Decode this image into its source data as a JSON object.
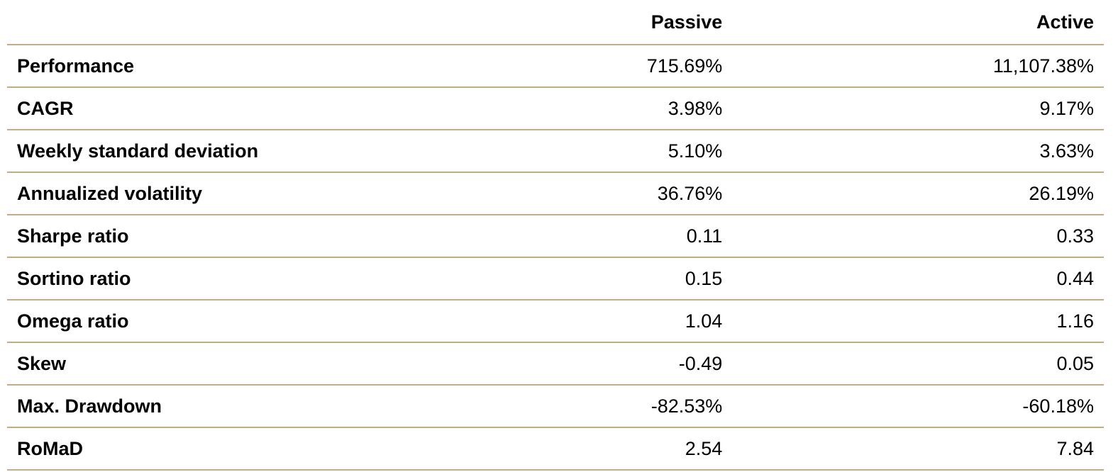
{
  "table": {
    "columns": [
      "Passive",
      "Active"
    ],
    "rows": [
      [
        "Performance",
        "715.69%",
        "11,107.38%"
      ],
      [
        "CAGR",
        "3.98%",
        "9.17%"
      ],
      [
        "Weekly standard deviation",
        "5.10%",
        "3.63%"
      ],
      [
        "Annualized volatility",
        "36.76%",
        "26.19%"
      ],
      [
        "Sharpe ratio",
        "0.11",
        "0.33"
      ],
      [
        "Sortino ratio",
        "0.15",
        "0.44"
      ],
      [
        "Omega ratio",
        "1.04",
        "1.16"
      ],
      [
        "Skew",
        "-0.49",
        "0.05"
      ],
      [
        "Max. Drawdown",
        "-82.53%",
        "-60.18%"
      ],
      [
        "RoMaD",
        "2.54",
        "7.84"
      ]
    ]
  }
}
